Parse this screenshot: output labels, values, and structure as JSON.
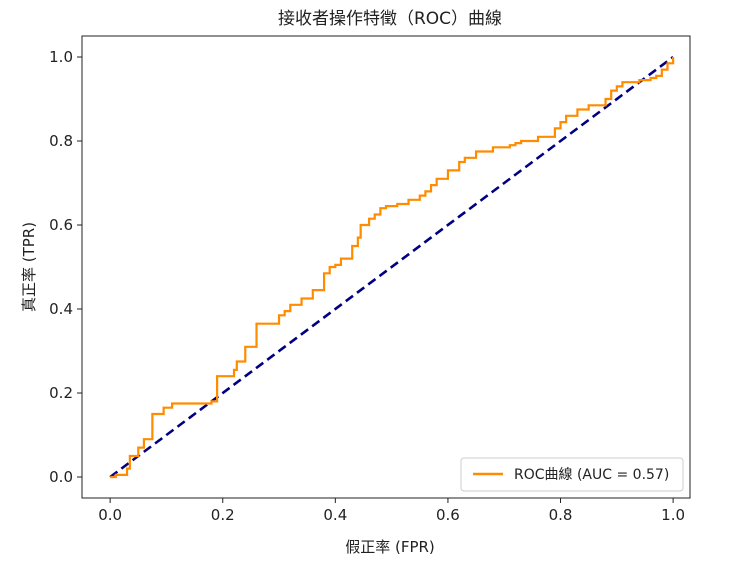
{
  "chart_data": {
    "type": "line",
    "title": "接收者操作特徵（ROC）曲線",
    "xlabel": "假正率 (FPR)",
    "ylabel": "真正率 (TPR)",
    "xlim": [
      -0.05,
      1.03
    ],
    "ylim": [
      -0.05,
      1.05
    ],
    "xticks": [
      "0.0",
      "0.2",
      "0.4",
      "0.6",
      "0.8",
      "1.0"
    ],
    "yticks": [
      "0.0",
      "0.2",
      "0.4",
      "0.6",
      "0.8",
      "1.0"
    ],
    "grid": false,
    "legend": {
      "position": "lower-right",
      "entries": [
        "ROC曲線 (AUC = 0.57)"
      ]
    },
    "series": [
      {
        "name": "ROC曲線 (AUC = 0.57)",
        "color": "#ff8c00",
        "style": "solid",
        "x": [
          0.0,
          0.01,
          0.01,
          0.03,
          0.03,
          0.035,
          0.035,
          0.05,
          0.05,
          0.06,
          0.06,
          0.075,
          0.075,
          0.095,
          0.095,
          0.11,
          0.11,
          0.18,
          0.18,
          0.19,
          0.19,
          0.22,
          0.22,
          0.225,
          0.225,
          0.24,
          0.24,
          0.26,
          0.26,
          0.3,
          0.3,
          0.31,
          0.31,
          0.32,
          0.32,
          0.34,
          0.34,
          0.36,
          0.36,
          0.38,
          0.38,
          0.39,
          0.39,
          0.4,
          0.4,
          0.41,
          0.41,
          0.43,
          0.43,
          0.44,
          0.44,
          0.445,
          0.445,
          0.46,
          0.46,
          0.47,
          0.47,
          0.48,
          0.48,
          0.49,
          0.49,
          0.51,
          0.51,
          0.53,
          0.53,
          0.55,
          0.55,
          0.56,
          0.56,
          0.57,
          0.57,
          0.58,
          0.58,
          0.6,
          0.6,
          0.62,
          0.62,
          0.63,
          0.63,
          0.65,
          0.65,
          0.68,
          0.68,
          0.71,
          0.71,
          0.72,
          0.72,
          0.73,
          0.73,
          0.76,
          0.76,
          0.79,
          0.79,
          0.8,
          0.8,
          0.81,
          0.81,
          0.83,
          0.83,
          0.85,
          0.85,
          0.88,
          0.88,
          0.89,
          0.89,
          0.9,
          0.9,
          0.91,
          0.91,
          0.94,
          0.94,
          0.96,
          0.96,
          0.97,
          0.97,
          0.98,
          0.98,
          0.99,
          0.99,
          1.0,
          1.0
        ],
        "y": [
          0.0,
          0.0,
          0.005,
          0.005,
          0.02,
          0.02,
          0.05,
          0.05,
          0.07,
          0.07,
          0.09,
          0.09,
          0.15,
          0.15,
          0.165,
          0.165,
          0.175,
          0.175,
          0.18,
          0.18,
          0.24,
          0.24,
          0.255,
          0.255,
          0.275,
          0.275,
          0.31,
          0.31,
          0.365,
          0.365,
          0.385,
          0.385,
          0.395,
          0.395,
          0.41,
          0.41,
          0.425,
          0.425,
          0.445,
          0.445,
          0.485,
          0.485,
          0.5,
          0.5,
          0.505,
          0.505,
          0.52,
          0.52,
          0.55,
          0.55,
          0.57,
          0.57,
          0.6,
          0.6,
          0.615,
          0.615,
          0.625,
          0.625,
          0.64,
          0.64,
          0.645,
          0.645,
          0.65,
          0.65,
          0.66,
          0.66,
          0.67,
          0.67,
          0.68,
          0.68,
          0.695,
          0.695,
          0.71,
          0.71,
          0.73,
          0.73,
          0.75,
          0.75,
          0.76,
          0.76,
          0.775,
          0.775,
          0.785,
          0.785,
          0.79,
          0.79,
          0.795,
          0.795,
          0.8,
          0.8,
          0.81,
          0.81,
          0.83,
          0.83,
          0.845,
          0.845,
          0.86,
          0.86,
          0.875,
          0.875,
          0.885,
          0.885,
          0.9,
          0.9,
          0.92,
          0.92,
          0.93,
          0.93,
          0.94,
          0.94,
          0.945,
          0.945,
          0.95,
          0.95,
          0.955,
          0.955,
          0.97,
          0.97,
          0.985,
          0.985,
          1.0
        ]
      },
      {
        "name": "",
        "color": "#000080",
        "style": "dashed",
        "x": [
          0.0,
          1.0
        ],
        "y": [
          0.0,
          1.0
        ]
      }
    ]
  }
}
